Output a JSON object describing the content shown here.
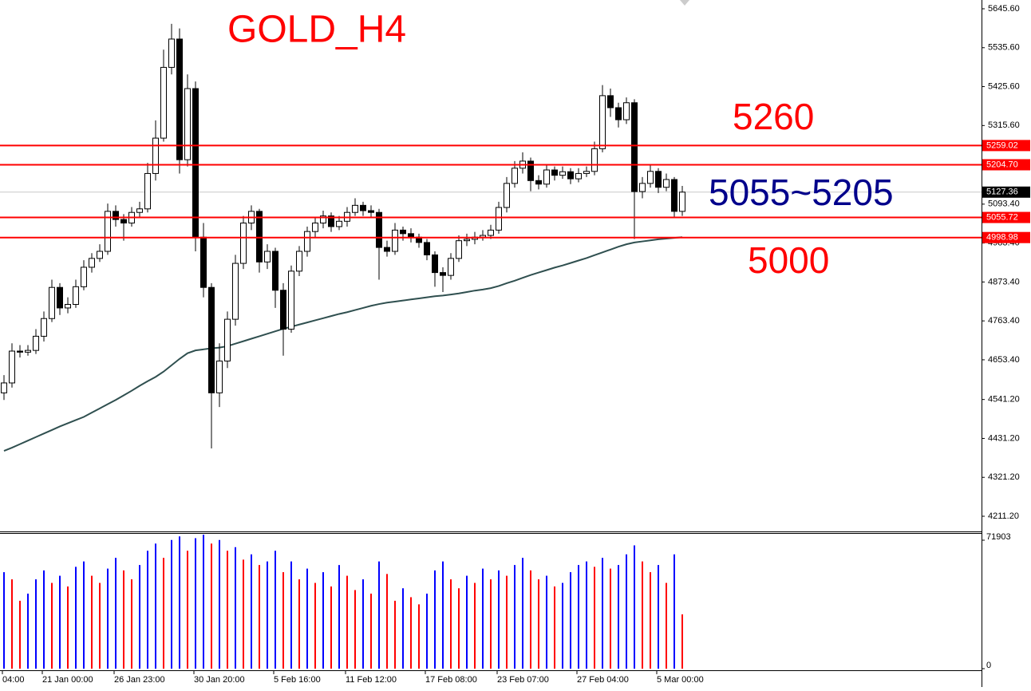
{
  "chart_data": {
    "type": "candlestick",
    "title": "GOLD_H4",
    "annotations": [
      {
        "text": "5260",
        "color": "#ff0000"
      },
      {
        "text": "5055~5205",
        "color": "#00008b"
      },
      {
        "text": "5000",
        "color": "#ff0000"
      }
    ],
    "title_color": "#ff0000",
    "categories": [
      "04:00",
      null,
      null,
      null,
      null,
      "21 Jan 00:00",
      null,
      null,
      null,
      null,
      null,
      null,
      null,
      null,
      "26 Jan 23:00",
      null,
      null,
      null,
      null,
      null,
      null,
      null,
      null,
      null,
      "30 Jan 20:00",
      null,
      null,
      null,
      null,
      null,
      null,
      null,
      null,
      null,
      "5 Feb 16:00",
      null,
      null,
      null,
      null,
      null,
      null,
      null,
      null,
      "11 Feb 12:00",
      null,
      null,
      null,
      null,
      null,
      null,
      null,
      null,
      null,
      "17 Feb 08:00",
      null,
      null,
      null,
      null,
      null,
      null,
      null,
      null,
      "23 Feb 07:00",
      null,
      null,
      null,
      null,
      null,
      null,
      null,
      null,
      null,
      "27 Feb 04:00",
      null,
      null,
      null,
      null,
      null,
      null,
      null,
      null,
      null,
      "5 Mar 00:00",
      null,
      null,
      null
    ],
    "open": [
      4560,
      4588,
      4678,
      4675,
      4680,
      4720,
      4770,
      4858,
      4800,
      4810,
      4860,
      4915,
      4940,
      4960,
      5073,
      5050,
      5040,
      5070,
      5080,
      5180,
      5280,
      5480,
      5560,
      5219,
      5420,
      5000,
      4858,
      4560,
      4650,
      4768,
      4926,
      5040,
      5073,
      4930,
      4960,
      4850,
      4740,
      4904,
      4960,
      5016,
      5040,
      5060,
      5030,
      5045,
      5070,
      5090,
      5075,
      5070,
      4971,
      4960,
      5020,
      5010,
      5000,
      4985,
      4950,
      4900,
      4892,
      4940,
      4990,
      4994,
      5000,
      5005,
      5020,
      5084,
      5152,
      5195,
      5215,
      5160,
      5150,
      5190,
      5175,
      5185,
      5165,
      5180,
      5186,
      5250,
      5400,
      5366,
      5332,
      5380,
      5129,
      5152,
      5186,
      5141,
      5163,
      5073
    ],
    "high": [
      4610,
      4700,
      4695,
      4695,
      4740,
      4790,
      4880,
      4870,
      4830,
      4880,
      4935,
      4955,
      4980,
      5095,
      5090,
      5065,
      5085,
      5100,
      5210,
      5330,
      5530,
      5603,
      5590,
      5460,
      5440,
      5040,
      4870,
      4700,
      4790,
      4950,
      5060,
      5090,
      5080,
      4980,
      4970,
      4870,
      4920,
      4975,
      5030,
      5055,
      5075,
      5070,
      5060,
      5085,
      5110,
      5100,
      5090,
      5080,
      4990,
      5040,
      5030,
      5025,
      5010,
      4995,
      4960,
      4915,
      4955,
      5005,
      5010,
      5015,
      5020,
      5035,
      5100,
      5170,
      5215,
      5240,
      5225,
      5175,
      5205,
      5200,
      5200,
      5195,
      5195,
      5200,
      5270,
      5430,
      5420,
      5380,
      5395,
      5390,
      5170,
      5205,
      5195,
      5180,
      5170,
      5145
    ],
    "low": [
      4540,
      4575,
      4660,
      4665,
      4670,
      4705,
      4760,
      4780,
      4785,
      4800,
      4850,
      4900,
      4930,
      4950,
      5030,
      4990,
      5030,
      5055,
      5070,
      5160,
      5270,
      5460,
      5180,
      5200,
      4960,
      4830,
      4403,
      4520,
      4630,
      4750,
      4910,
      5020,
      4900,
      4910,
      4800,
      4665,
      4730,
      4890,
      4945,
      5000,
      5025,
      5015,
      5020,
      5030,
      5060,
      5060,
      5055,
      4880,
      4945,
      4950,
      4990,
      4985,
      4970,
      4935,
      4860,
      4845,
      4880,
      4930,
      4975,
      4980,
      4990,
      4995,
      5010,
      5070,
      5140,
      5180,
      5130,
      5135,
      5140,
      5160,
      5165,
      5150,
      5155,
      5170,
      5175,
      5240,
      5340,
      5310,
      5320,
      4995,
      5110,
      5140,
      5125,
      5130,
      5055,
      5060
    ],
    "close": [
      4588,
      4678,
      4675,
      4680,
      4720,
      4770,
      4858,
      4800,
      4810,
      4860,
      4915,
      4940,
      4960,
      5073,
      5050,
      5040,
      5070,
      5080,
      5180,
      5280,
      5480,
      5560,
      5219,
      5420,
      5000,
      4858,
      4560,
      4650,
      4768,
      4926,
      5040,
      5073,
      4930,
      4960,
      4850,
      4740,
      4904,
      4960,
      5016,
      5040,
      5060,
      5030,
      5045,
      5070,
      5090,
      5075,
      5070,
      4971,
      4960,
      5020,
      5010,
      5000,
      4985,
      4950,
      4900,
      4892,
      4940,
      4990,
      4994,
      5000,
      5005,
      5020,
      5084,
      5152,
      5195,
      5215,
      5160,
      5150,
      5190,
      5175,
      5185,
      5165,
      5180,
      5186,
      5250,
      5400,
      5366,
      5332,
      5380,
      5129,
      5152,
      5186,
      5141,
      5163,
      5073,
      5127.36
    ],
    "up_color": "#ffffff",
    "down_color": "#000000",
    "ma": {
      "color": "#2f4f4f",
      "values": [
        4396,
        4405,
        4415,
        4425,
        4435,
        4445,
        4455,
        4465,
        4474,
        4483,
        4492,
        4504,
        4516,
        4528,
        4540,
        4553,
        4566,
        4580,
        4593,
        4605,
        4620,
        4638,
        4656,
        4672,
        4680,
        4683,
        4686,
        4688,
        4692,
        4699,
        4706,
        4713,
        4720,
        4727,
        4734,
        4741,
        4747,
        4753,
        4759,
        4765,
        4771,
        4777,
        4783,
        4788,
        4794,
        4800,
        4806,
        4811,
        4815,
        4818,
        4821,
        4824,
        4827,
        4830,
        4833,
        4835,
        4838,
        4841,
        4845,
        4849,
        4852,
        4856,
        4862,
        4870,
        4877,
        4885,
        4893,
        4900,
        4907,
        4914,
        4920,
        4927,
        4934,
        4941,
        4949,
        4957,
        4965,
        4973,
        4980,
        4985,
        4988,
        4991,
        4994,
        4996,
        4998,
        5000
      ]
    },
    "levels": {
      "color": "#ff0000",
      "values": [
        5259.02,
        5204.7,
        5055.72,
        4998.98
      ],
      "value_labels": [
        "5259.02",
        "5204.70",
        "5055.72",
        "4998.98"
      ]
    },
    "last_price": {
      "value": 5127.36,
      "label": "5127.36"
    },
    "ylim": [
      4170.6,
      5670.4
    ],
    "yticks": [
      {
        "value": 5645.6,
        "label": "5645.60"
      },
      {
        "value": 5535.6,
        "label": "5535.60"
      },
      {
        "value": 5425.6,
        "label": "5425.60"
      },
      {
        "value": 5315.6,
        "label": "5315.60"
      },
      {
        "value": 5093.4,
        "label": "5093.40"
      },
      {
        "value": 4983.4,
        "label": "4983.40"
      },
      {
        "value": 4873.4,
        "label": "4873.40"
      },
      {
        "value": 4763.4,
        "label": "4763.40"
      },
      {
        "value": 4653.4,
        "label": "4653.40"
      },
      {
        "value": 4541.2,
        "label": "4541.20"
      },
      {
        "value": 4431.2,
        "label": "4431.20"
      },
      {
        "value": 4321.2,
        "label": "4321.20"
      },
      {
        "value": 4211.2,
        "label": "4211.20"
      }
    ],
    "volume": {
      "up_color": "#0000ff",
      "down_color": "#ff0000",
      "ylim": [
        0,
        71903
      ],
      "yticks": [
        0,
        71903
      ],
      "values": [
        54000,
        50000,
        38000,
        42000,
        50000,
        55000,
        48000,
        52000,
        46000,
        57000,
        60000,
        52000,
        48000,
        56000,
        62000,
        55000,
        50000,
        58000,
        66000,
        70000,
        62000,
        72000,
        74000,
        66000,
        73000,
        75000,
        70000,
        72000,
        66000,
        68000,
        61000,
        64000,
        58000,
        60000,
        66000,
        54000,
        60000,
        50000,
        56000,
        48000,
        54000,
        46000,
        58000,
        52000,
        44000,
        50000,
        42000,
        60000,
        53000,
        38000,
        45000,
        40000,
        36000,
        42000,
        55000,
        60000,
        50000,
        45000,
        52000,
        48000,
        56000,
        50000,
        55000,
        52000,
        58000,
        62000,
        55000,
        50000,
        52000,
        46000,
        48000,
        54000,
        58000,
        60000,
        57000,
        62000,
        56000,
        58000,
        64000,
        69000,
        60000,
        54000,
        58000,
        48000,
        64000,
        30400
      ]
    }
  }
}
